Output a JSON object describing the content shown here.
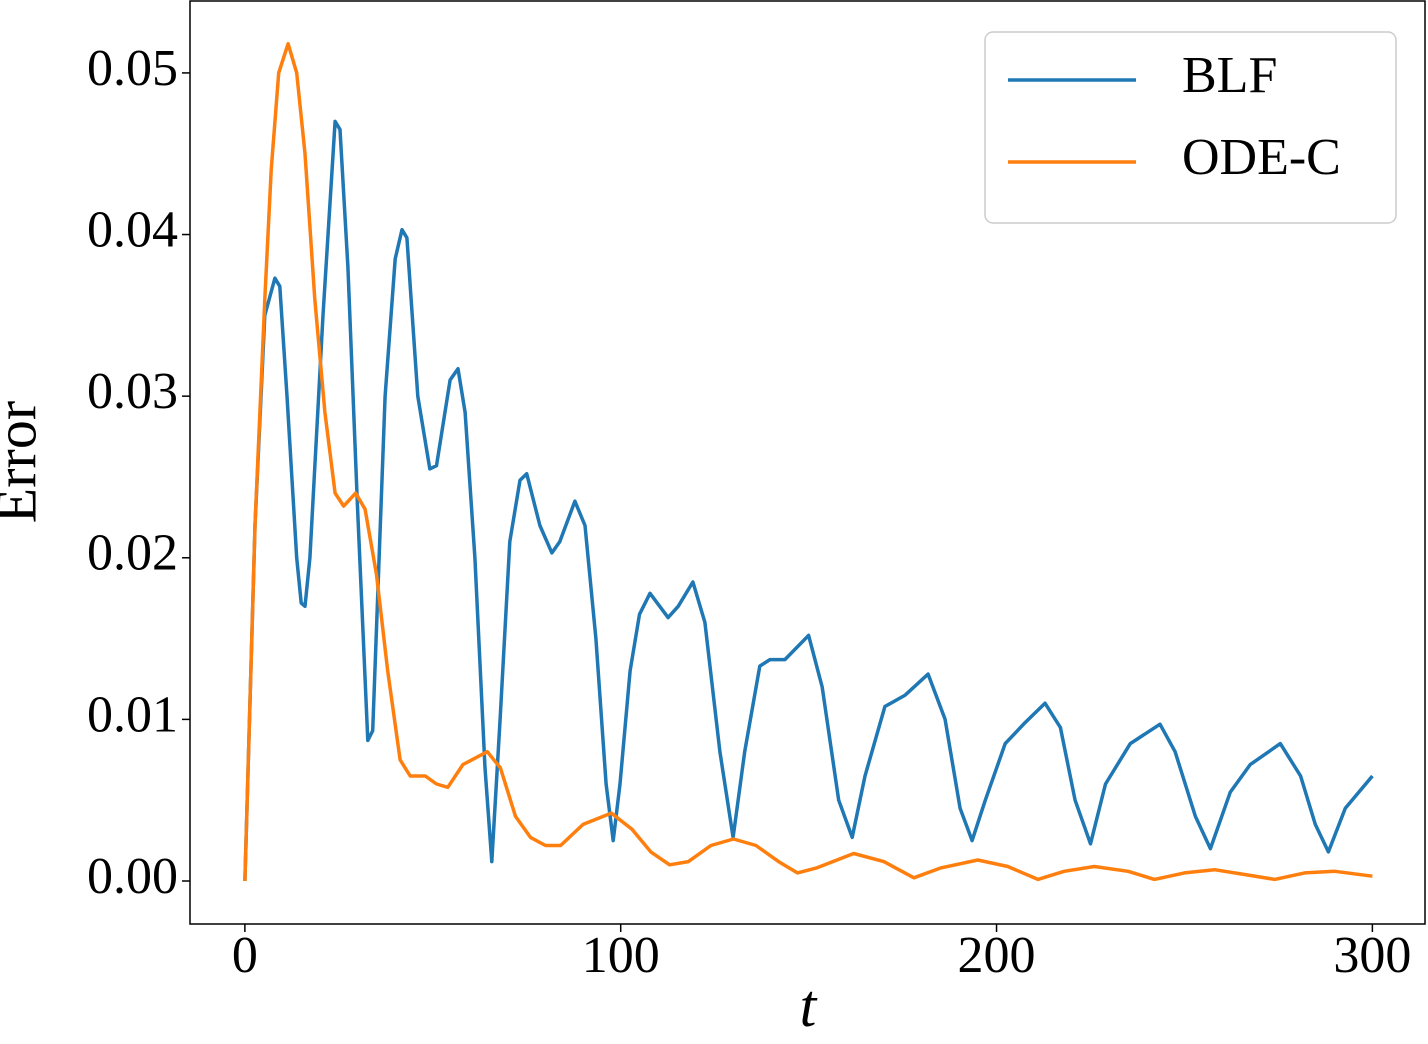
{
  "chart_data": {
    "type": "line",
    "xlabel": "t",
    "ylabel": "Error",
    "xlim": [
      -14.6,
      314
    ],
    "ylim": [
      -0.00266,
      0.05445
    ],
    "xticks": [
      0,
      100,
      200,
      300
    ],
    "yticks": [
      {
        "value": 0,
        "label": "0.00"
      },
      {
        "value": 0.01,
        "label": "0.01"
      },
      {
        "value": 0.02,
        "label": "0.02"
      },
      {
        "value": 0.03,
        "label": "0.03"
      },
      {
        "value": 0.04,
        "label": "0.04"
      },
      {
        "value": 0.05,
        "label": "0.05"
      }
    ],
    "legend": "upper right",
    "series": [
      {
        "name": "BLF",
        "color": "#1f77b4",
        "x": [
          0,
          2.7,
          5.3,
          8,
          9.3,
          11.2,
          13.8,
          15,
          16,
          17.3,
          20.8,
          24,
          25.3,
          27.4,
          30,
          32.7,
          34,
          37.3,
          40,
          41.8,
          43.1,
          46,
          49.2,
          51,
          54.6,
          56.7,
          58.6,
          61.2,
          63.9,
          65.7,
          67.9,
          70.5,
          73.2,
          75,
          78.5,
          81.7,
          83.8,
          87.8,
          90.5,
          93.4,
          96.1,
          98,
          99.8,
          102.5,
          105,
          107.8,
          112.6,
          115.3,
          119.2,
          122.4,
          126.4,
          129.9,
          133,
          137,
          139.7,
          143.7,
          150,
          153.6,
          158,
          161.6,
          165,
          170.3,
          175.7,
          181.8,
          186.3,
          190.3,
          193.5,
          197,
          202.3,
          207.6,
          212.9,
          217,
          220.9,
          225,
          229,
          235.6,
          243.5,
          247.5,
          252.9,
          256.9,
          262.2,
          267.5,
          275.5,
          280.9,
          284.8,
          288.3,
          292.8,
          300
        ],
        "values": [
          0,
          0.022,
          0.035,
          0.0373,
          0.0368,
          0.03,
          0.02,
          0.0172,
          0.017,
          0.02,
          0.035,
          0.047,
          0.0465,
          0.038,
          0.023,
          0.0087,
          0.0093,
          0.03,
          0.0385,
          0.0403,
          0.0398,
          0.03,
          0.0255,
          0.0257,
          0.031,
          0.0317,
          0.029,
          0.02,
          0.007,
          0.0012,
          0.01,
          0.021,
          0.0248,
          0.0252,
          0.022,
          0.0203,
          0.021,
          0.0235,
          0.022,
          0.015,
          0.006,
          0.0025,
          0.006,
          0.013,
          0.0165,
          0.0178,
          0.0163,
          0.017,
          0.0185,
          0.016,
          0.008,
          0.0027,
          0.008,
          0.0133,
          0.0137,
          0.0137,
          0.0152,
          0.012,
          0.005,
          0.0027,
          0.0065,
          0.0108,
          0.0115,
          0.0128,
          0.01,
          0.0045,
          0.0025,
          0.005,
          0.0085,
          0.0098,
          0.011,
          0.0095,
          0.005,
          0.0023,
          0.006,
          0.0085,
          0.0097,
          0.008,
          0.004,
          0.002,
          0.0055,
          0.0072,
          0.0085,
          0.0065,
          0.0035,
          0.0018,
          0.0045,
          0.0065
        ]
      },
      {
        "name": "ODE-C",
        "color": "#ff7f0e",
        "x": [
          0,
          2.7,
          5.3,
          7,
          9,
          11.5,
          13.8,
          16,
          18.6,
          21.3,
          24,
          26.3,
          29.5,
          32,
          35,
          38,
          41.3,
          44,
          48,
          51,
          54,
          58,
          64.5,
          68,
          72,
          76,
          80,
          84,
          90,
          97.5,
          103,
          108,
          113,
          118,
          124,
          130,
          136,
          142,
          147,
          152,
          162,
          170,
          178,
          185,
          195,
          203,
          211,
          218,
          226,
          235,
          242,
          250,
          258,
          266,
          274,
          282,
          290,
          300
        ],
        "values": [
          0,
          0.022,
          0.036,
          0.044,
          0.05,
          0.0518,
          0.05,
          0.045,
          0.036,
          0.029,
          0.024,
          0.0232,
          0.024,
          0.023,
          0.019,
          0.013,
          0.0075,
          0.0065,
          0.0065,
          0.006,
          0.0058,
          0.0072,
          0.008,
          0.007,
          0.004,
          0.0027,
          0.0022,
          0.0022,
          0.0035,
          0.0042,
          0.0032,
          0.0018,
          0.001,
          0.0012,
          0.0022,
          0.0026,
          0.0022,
          0.0012,
          0.0005,
          0.0008,
          0.0017,
          0.0012,
          0.0002,
          0.0008,
          0.0013,
          0.0009,
          0.0001,
          0.0006,
          0.0009,
          0.0006,
          0.0001,
          0.0005,
          0.0007,
          0.0004,
          0.0001,
          0.0005,
          0.0006,
          0.0003
        ]
      }
    ]
  }
}
